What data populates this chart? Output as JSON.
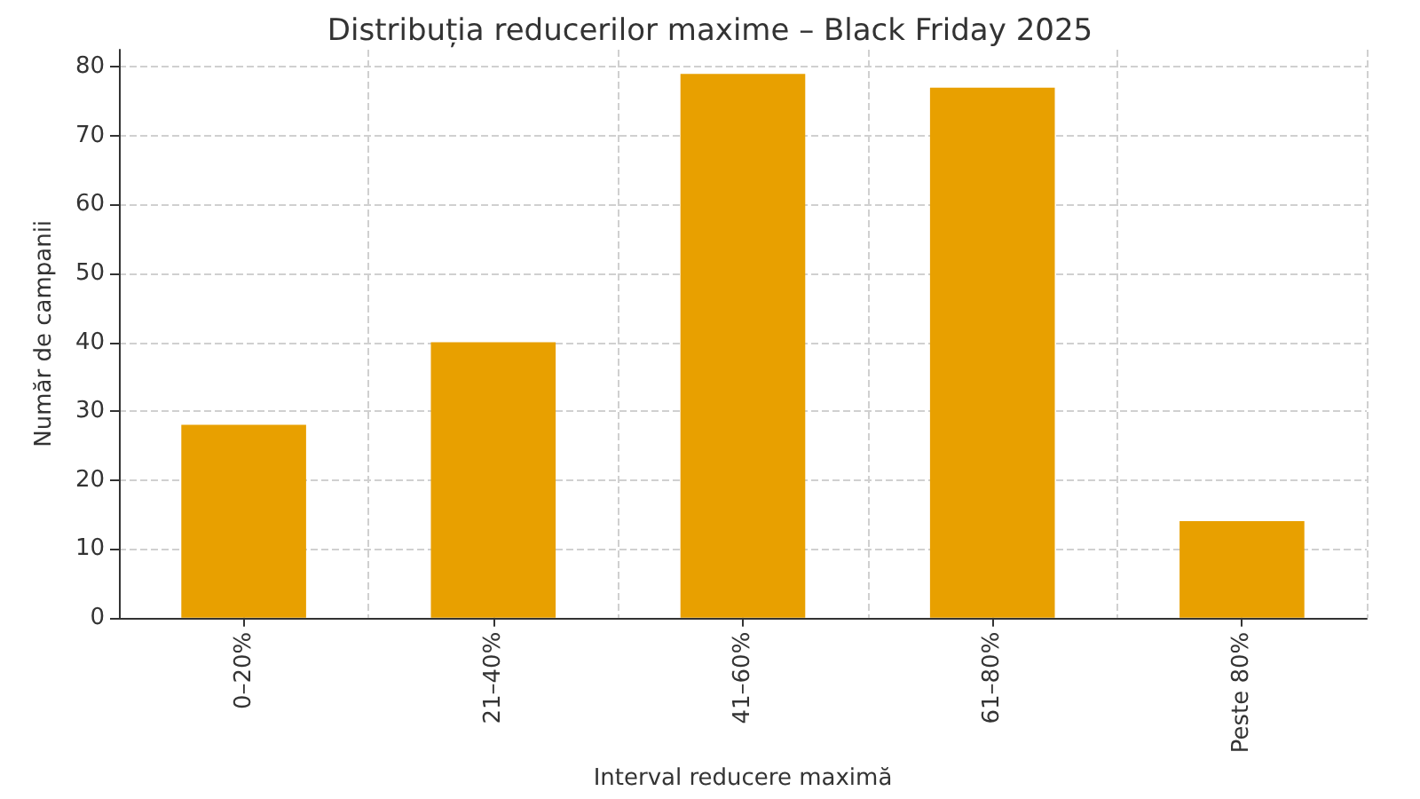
{
  "chart_data": {
    "type": "bar",
    "title": "Distribuția reducerilor maxime – Black Friday 2025",
    "xlabel": "Interval reducere maximă",
    "ylabel": "Număr de campanii",
    "categories": [
      "0–20%",
      "21–40%",
      "41–60%",
      "61–80%",
      "Peste 80%"
    ],
    "values": [
      28,
      40,
      79,
      77,
      14
    ],
    "color": "#e8a000",
    "ylim": [
      0,
      82.5
    ],
    "yticks": [
      0,
      10,
      20,
      30,
      40,
      50,
      60,
      70,
      80
    ],
    "grid": true
  }
}
